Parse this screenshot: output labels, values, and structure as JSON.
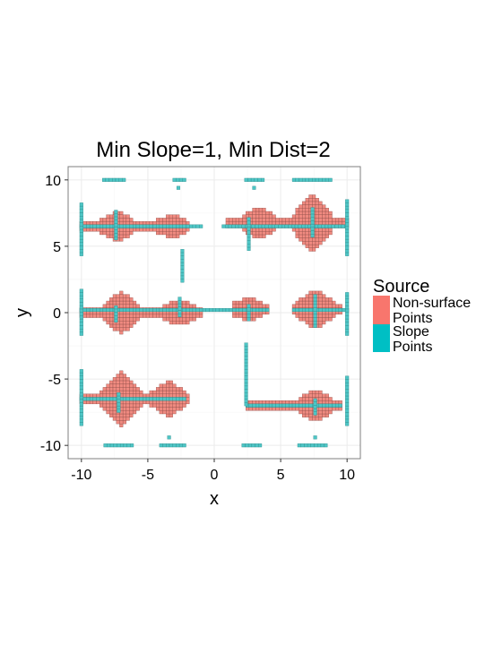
{
  "chart_data": {
    "type": "heatmap",
    "title": "Min Slope=1, Min Dist=2",
    "xlabel": "x",
    "ylabel": "y",
    "xlim": [
      -11,
      11
    ],
    "ylim": [
      -11,
      11
    ],
    "x_ticks": [
      -10,
      -5,
      0,
      5,
      10
    ],
    "y_ticks": [
      -10,
      -5,
      0,
      5,
      10
    ],
    "grid": true,
    "legend": {
      "title": "Source",
      "position": "right",
      "entries": [
        {
          "name": "Non-surface",
          "name_line2": "Points",
          "color": "#F8766D"
        },
        {
          "name": "Slope",
          "name_line2": "Points",
          "color": "#00BFC4"
        }
      ]
    },
    "colors": {
      "panel": "#FFFFFF",
      "panel_border": "#7F7F7F",
      "grid_major": "#EBEBEB",
      "grid_minor": "#F5F5F5",
      "nonsurface_fill": "#F08A80",
      "nonsurface_edge": "#8C4A44",
      "slope_fill": "#4EC5C5",
      "slope_edge": "#2A8A8A"
    },
    "cell_size": 0.25,
    "nonsurface_regions": [
      {
        "xmin": -10.0,
        "xmax": -2.0,
        "cy": 6.6,
        "peaks": [
          {
            "x": -7.3,
            "h": 1.0
          },
          {
            "x": -3.2,
            "h": 0.8
          }
        ],
        "base": 0.2
      },
      {
        "xmin": 1.0,
        "xmax": 10.0,
        "cy": 6.8,
        "peaks": [
          {
            "x": 3.4,
            "h": 1.1
          },
          {
            "x": 7.4,
            "h": 2.0
          }
        ],
        "base": 0.2
      },
      {
        "xmin": -10.0,
        "xmax": -1.0,
        "cy": 0.1,
        "peaks": [
          {
            "x": -7.0,
            "h": 1.5
          },
          {
            "x": -2.6,
            "h": 0.9
          }
        ],
        "base": 0.2
      },
      {
        "xmin": 1.5,
        "xmax": 4.0,
        "cy": 0.2,
        "peaks": [
          {
            "x": 2.6,
            "h": 0.8
          }
        ],
        "base": 0.15
      },
      {
        "xmin": 6.0,
        "xmax": 9.5,
        "cy": 0.2,
        "peaks": [
          {
            "x": 7.6,
            "h": 1.4
          }
        ],
        "base": 0.15
      },
      {
        "xmin": -10.0,
        "xmax": -2.0,
        "cy": -6.5,
        "peaks": [
          {
            "x": -7.0,
            "h": 2.0
          },
          {
            "x": -3.4,
            "h": 1.2
          }
        ],
        "base": 0.3
      },
      {
        "xmin": 2.5,
        "xmax": 9.5,
        "cy": -7.0,
        "peaks": [
          {
            "x": 3.0,
            "h": 0.3
          },
          {
            "x": 7.6,
            "h": 1.1
          }
        ],
        "base": 0.1
      }
    ],
    "slope_segments": [
      {
        "orient": "h",
        "y": 10.0,
        "x0": -8.3,
        "x1": -6.6
      },
      {
        "orient": "h",
        "y": 10.0,
        "x0": -3.0,
        "x1": -2.2
      },
      {
        "orient": "h",
        "y": 9.4,
        "x0": -2.7,
        "x1": -2.7
      },
      {
        "orient": "h",
        "y": 10.0,
        "x0": 2.4,
        "x1": 3.8
      },
      {
        "orient": "h",
        "y": 9.4,
        "x0": 3.0,
        "x1": 3.0
      },
      {
        "orient": "h",
        "y": 10.0,
        "x0": 6.0,
        "x1": 8.8
      },
      {
        "orient": "h",
        "y": 6.5,
        "x0": -10.0,
        "x1": -1.0
      },
      {
        "orient": "h",
        "y": 6.5,
        "x0": 0.7,
        "x1": 10.0
      },
      {
        "orient": "h",
        "y": 0.2,
        "x0": -10.0,
        "x1": 4.0
      },
      {
        "orient": "h",
        "y": 0.2,
        "x0": 6.0,
        "x1": 10.0
      },
      {
        "orient": "h",
        "y": -6.5,
        "x0": -10.0,
        "x1": -2.2
      },
      {
        "orient": "h",
        "y": -7.0,
        "x0": 2.5,
        "x1": 9.6
      },
      {
        "orient": "h",
        "y": -10.0,
        "x0": -8.2,
        "x1": -6.0
      },
      {
        "orient": "h",
        "y": -10.0,
        "x0": -4.0,
        "x1": -2.2
      },
      {
        "orient": "h",
        "y": -9.4,
        "x0": -3.4,
        "x1": -3.4
      },
      {
        "orient": "h",
        "y": -10.0,
        "x0": 2.2,
        "x1": 3.6
      },
      {
        "orient": "h",
        "y": -10.0,
        "x0": 6.4,
        "x1": 8.4
      },
      {
        "orient": "h",
        "y": -9.4,
        "x0": 7.6,
        "x1": 7.6
      },
      {
        "orient": "v",
        "x": -10.0,
        "y0": 4.4,
        "y1": 8.2
      },
      {
        "orient": "v",
        "x": 10.0,
        "y0": 4.4,
        "y1": 8.6
      },
      {
        "orient": "v",
        "x": -10.0,
        "y0": -1.6,
        "y1": 1.8
      },
      {
        "orient": "v",
        "x": 10.0,
        "y0": -1.6,
        "y1": 1.6
      },
      {
        "orient": "v",
        "x": -10.0,
        "y0": -8.4,
        "y1": -4.4
      },
      {
        "orient": "v",
        "x": 10.0,
        "y0": -8.4,
        "y1": -4.8
      },
      {
        "orient": "v",
        "x": -7.4,
        "y0": 5.6,
        "y1": 7.6
      },
      {
        "orient": "v",
        "x": -2.4,
        "y0": 2.4,
        "y1": 4.8
      },
      {
        "orient": "v",
        "x": 2.6,
        "y0": 4.8,
        "y1": 7.2
      },
      {
        "orient": "v",
        "x": 7.4,
        "y0": 5.8,
        "y1": 8.0
      },
      {
        "orient": "v",
        "x": -7.4,
        "y0": -0.6,
        "y1": 0.6
      },
      {
        "orient": "v",
        "x": -2.6,
        "y0": -0.2,
        "y1": 1.2
      },
      {
        "orient": "v",
        "x": 2.6,
        "y0": -0.5,
        "y1": 0.6
      },
      {
        "orient": "v",
        "x": 7.6,
        "y0": -1.0,
        "y1": 1.4
      },
      {
        "orient": "v",
        "x": -7.2,
        "y0": -7.4,
        "y1": -6.0
      },
      {
        "orient": "v",
        "x": 2.4,
        "y0": -6.9,
        "y1": -2.3
      },
      {
        "orient": "v",
        "x": 7.6,
        "y0": -7.6,
        "y1": -6.6
      }
    ]
  }
}
